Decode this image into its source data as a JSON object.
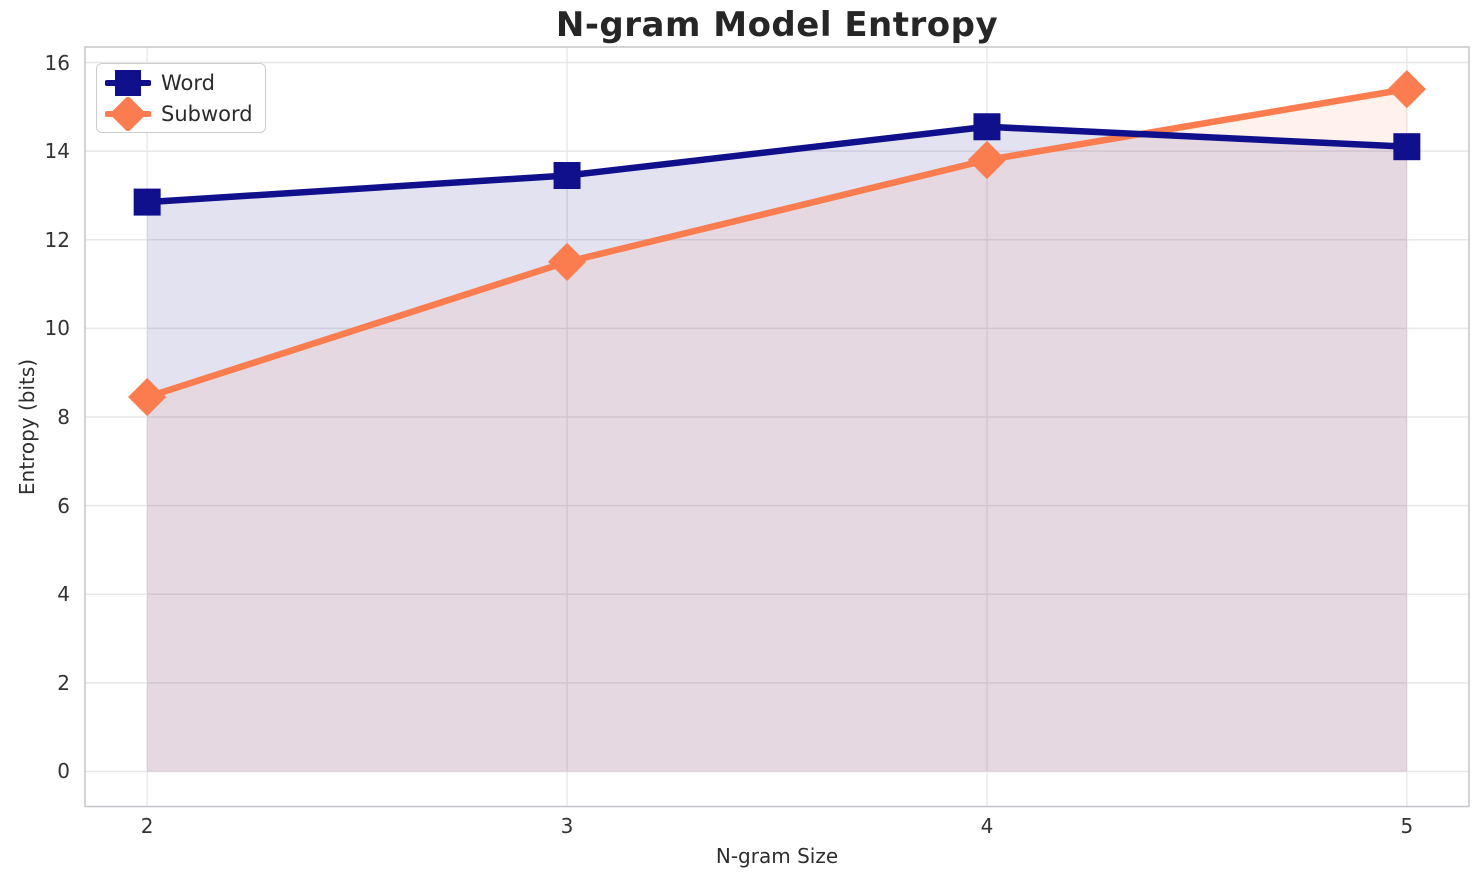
{
  "chart_data": {
    "type": "line",
    "title": "N-gram Model Entropy",
    "xlabel": "N-gram Size",
    "ylabel": "Entropy (bits)",
    "x": [
      2,
      3,
      4,
      5
    ],
    "xtick_labels": [
      "2",
      "3",
      "4",
      "5"
    ],
    "yticks": [
      0,
      2,
      4,
      6,
      8,
      10,
      12,
      14,
      16
    ],
    "xlim": [
      1.852,
      5.148
    ],
    "ylim": [
      -0.79,
      16.35
    ],
    "grid": true,
    "legend_position": "upper-left",
    "fill_to_zero": true,
    "series": [
      {
        "name": "Word",
        "marker": "square",
        "color": "#10108c",
        "fill_alpha": 0.12,
        "values": [
          12.85,
          13.45,
          14.55,
          14.1
        ]
      },
      {
        "name": "Subword",
        "marker": "diamond",
        "color": "#fb7d4f",
        "fill_alpha": 0.1,
        "values": [
          8.45,
          11.5,
          13.8,
          15.4
        ]
      }
    ],
    "colors": {
      "grid": "#e8e8ea",
      "spine": "#c9c9cd",
      "title_text": "#262626",
      "tick_text": "#333333"
    }
  }
}
